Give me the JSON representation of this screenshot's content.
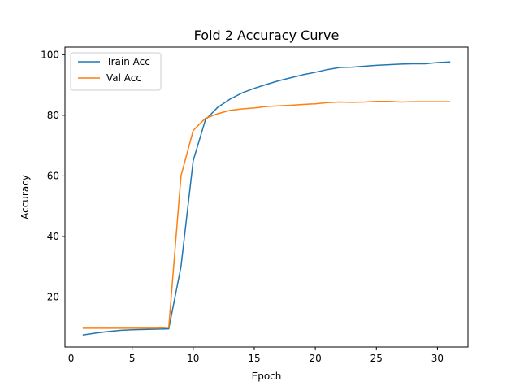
{
  "chart_data": {
    "type": "line",
    "title": "Fold 2 Accuracy Curve",
    "xlabel": "Epoch",
    "ylabel": "Accuracy",
    "xlim": [
      -0.5,
      32.5
    ],
    "ylim": [
      3.5,
      102.5
    ],
    "xticks": [
      0,
      5,
      10,
      15,
      20,
      25,
      30
    ],
    "yticks": [
      20,
      40,
      60,
      80,
      100
    ],
    "grid": false,
    "legend_position": "upper-left",
    "x": [
      1,
      2,
      3,
      4,
      5,
      6,
      7,
      8,
      9,
      10,
      11,
      12,
      13,
      14,
      15,
      16,
      17,
      18,
      19,
      20,
      21,
      22,
      23,
      24,
      25,
      26,
      27,
      28,
      29,
      30,
      31
    ],
    "series": [
      {
        "name": "Train Acc",
        "color": "#1f77b4",
        "values": [
          7.5,
          8.1,
          8.6,
          9.0,
          9.2,
          9.3,
          9.4,
          9.5,
          30.0,
          65.0,
          78.5,
          82.6,
          85.3,
          87.4,
          88.9,
          90.2,
          91.4,
          92.4,
          93.4,
          94.2,
          95.1,
          95.8,
          95.9,
          96.2,
          96.5,
          96.7,
          96.9,
          97.0,
          97.0,
          97.4,
          97.6
        ]
      },
      {
        "name": "Val Acc",
        "color": "#ff7f0e",
        "values": [
          9.7,
          9.7,
          9.7,
          9.7,
          9.7,
          9.7,
          9.7,
          10.0,
          60.0,
          75.0,
          79.0,
          80.5,
          81.6,
          82.1,
          82.4,
          82.9,
          83.1,
          83.3,
          83.6,
          83.8,
          84.2,
          84.4,
          84.3,
          84.4,
          84.6,
          84.6,
          84.4,
          84.5,
          84.5,
          84.5,
          84.5
        ]
      }
    ]
  }
}
